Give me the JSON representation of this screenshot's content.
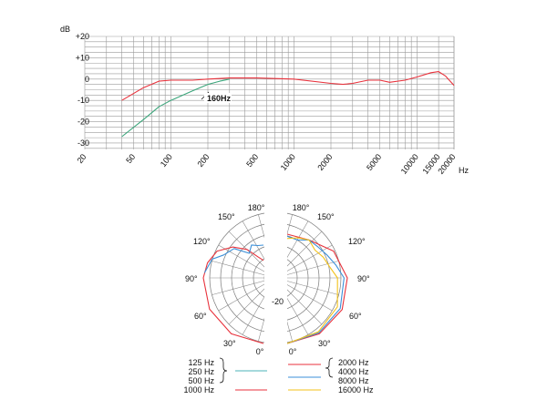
{
  "colors": {
    "red": "#e8323c",
    "green": "#3aa57a",
    "teal": "#4bb3b8",
    "blue": "#3b8fd8",
    "yellow": "#f3c21a",
    "grid": "#9a9a9a",
    "text": "#111111"
  },
  "chart_data": [
    {
      "type": "line",
      "xscale": "log",
      "xlim": [
        20,
        20000
      ],
      "ylim": [
        -33,
        20
      ],
      "x_ticks": [
        20,
        50,
        100,
        200,
        500,
        1000,
        2000,
        5000,
        10000,
        15000,
        20000
      ],
      "x_tick_labels": [
        "20",
        "50",
        "100",
        "200",
        "500",
        "1000",
        "2000",
        "5000",
        "10000",
        "15000",
        "20000"
      ],
      "xlabel": "Hz",
      "y_ticks": [
        20,
        10,
        0,
        -10,
        -20,
        -30
      ],
      "y_tick_labels": [
        "+20",
        "+10",
        "0",
        "-10",
        "-20",
        "-30"
      ],
      "ylabel": "dB",
      "grid": true,
      "annotation": "160Hz",
      "series": [
        {
          "color": "red",
          "x": [
            40,
            60,
            80,
            100,
            150,
            200,
            300,
            500,
            1000,
            2000,
            2500,
            3000,
            4000,
            5000,
            6000,
            8000,
            10000,
            13000,
            15000,
            17000,
            20000
          ],
          "y": [
            -10,
            -4,
            -1,
            -0.5,
            -0.5,
            0,
            0.5,
            0.5,
            0,
            -2,
            -2.5,
            -2,
            -0.5,
            -0.5,
            -1.5,
            -0.5,
            1,
            3,
            3.5,
            1.5,
            -3
          ]
        },
        {
          "color": "green",
          "x": [
            40,
            60,
            80,
            100,
            150,
            200,
            250,
            300
          ],
          "y": [
            -27,
            -19,
            -13,
            -10,
            -5.5,
            -2.5,
            -1,
            0
          ]
        }
      ]
    },
    {
      "type": "polar",
      "angle_labels": [
        "180°",
        "150°",
        "120°",
        "90°",
        "60°",
        "30°",
        "0°"
      ],
      "radial_label": "-20",
      "halves": [
        {
          "side": "left",
          "series": [
            {
              "color": "red",
              "points": [
                [
                  0,
                  0
                ],
                [
                  30,
                  -0.5
                ],
                [
                  60,
                  -1.5
                ],
                [
                  90,
                  -2.5
                ],
                [
                  105,
                  -3.5
                ],
                [
                  120,
                  -5.5
                ],
                [
                  135,
                  -10
                ],
                [
                  150,
                  -15
                ],
                [
                  165,
                  -20
                ],
                [
                  180,
                  -22
                ]
              ]
            },
            {
              "color": "blue",
              "points": [
                [
                  95,
                  -3
                ],
                [
                  110,
                  -5
                ],
                [
                  120,
                  -9
                ],
                [
                  135,
                  -11
                ],
                [
                  150,
                  -17
                ],
                [
                  160,
                  -14
                ],
                [
                  170,
                  -15
                ],
                [
                  180,
                  -15
                ]
              ]
            }
          ]
        },
        {
          "side": "right",
          "series": [
            {
              "color": "red",
              "points": [
                [
                  0,
                  0
                ],
                [
                  30,
                  -0.5
                ],
                [
                  60,
                  -1
                ],
                [
                  90,
                  -2.5
                ],
                [
                  120,
                  -5.5
                ],
                [
                  150,
                  -10
                ],
                [
                  180,
                  -10
                ]
              ]
            },
            {
              "color": "blue",
              "points": [
                [
                  0,
                  0
                ],
                [
                  30,
                  -1
                ],
                [
                  60,
                  -2
                ],
                [
                  90,
                  -4
                ],
                [
                  105,
                  -7
                ],
                [
                  120,
                  -9
                ],
                [
                  135,
                  -10
                ],
                [
                  150,
                  -10
                ],
                [
                  165,
                  -12
                ],
                [
                  180,
                  -11
                ]
              ]
            },
            {
              "color": "yellow",
              "points": [
                [
                  0,
                  0
                ],
                [
                  30,
                  -1.5
                ],
                [
                  60,
                  -3.5
                ],
                [
                  90,
                  -7
                ],
                [
                  105,
                  -10
                ],
                [
                  120,
                  -11
                ],
                [
                  135,
                  -12
                ],
                [
                  150,
                  -10
                ],
                [
                  165,
                  -11
                ],
                [
                  180,
                  -12
                ]
              ]
            }
          ]
        }
      ]
    }
  ],
  "legend": {
    "left": {
      "labels": [
        "125 Hz",
        "250 Hz",
        "500 Hz",
        "1000 Hz"
      ]
    },
    "right": {
      "labels": [
        "2000 Hz",
        "4000 Hz",
        "8000 Hz",
        "16000 Hz"
      ]
    }
  }
}
